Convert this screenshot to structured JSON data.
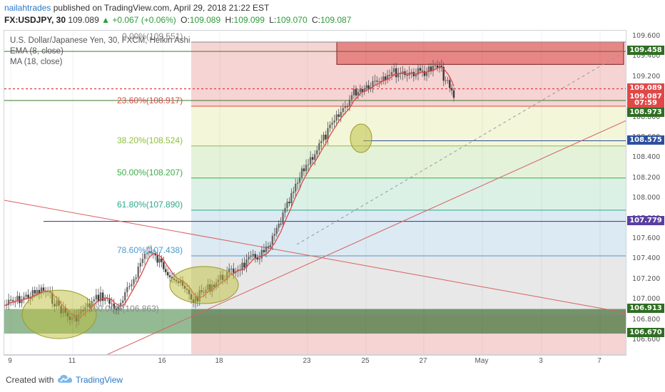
{
  "header": {
    "author": "nailahtrades",
    "published_text": "published on TradingView.com, April 29, 2018 21:22 EST",
    "symbol": "FX:USDJPY, 30",
    "last": "109.089",
    "change": "+0.067 (+0.06%)",
    "open_label": "O:",
    "open": "109.089",
    "high_label": "H:",
    "high": "109.099",
    "low_label": "L:",
    "low": "109.070",
    "close_label": "C:",
    "close": "109.087"
  },
  "legend": {
    "title": "U.S. Dollar/Japanese Yen, 30, FXCM, Heikin Ashi",
    "ema": "EMA (8, close)",
    "ma": "MA (18, close)"
  },
  "fib_levels": [
    {
      "label": "0.00%(109.551)",
      "price": 109.551,
      "color": "#888888"
    },
    {
      "label": "23.60%(108.917)",
      "price": 108.917,
      "color": "#d94a4a"
    },
    {
      "label": "38.20%(108.524)",
      "price": 108.524,
      "color": "#8fbf3a"
    },
    {
      "label": "50.00%(108.207)",
      "price": 108.207,
      "color": "#3fae4a"
    },
    {
      "label": "61.80%(107.890)",
      "price": 107.89,
      "color": "#2fa88a"
    },
    {
      "label": "78.60%(107.438)",
      "price": 107.438,
      "color": "#4a9ad0"
    },
    {
      "label": "100.00%(106.863)",
      "price": 106.863,
      "color": "#888888"
    }
  ],
  "price_axis": {
    "ticks": [
      "109.600",
      "109.400",
      "109.200",
      "109.000",
      "108.800",
      "108.600",
      "108.400",
      "108.200",
      "108.000",
      "107.800",
      "107.600",
      "107.400",
      "107.200",
      "107.000",
      "106.800",
      "106.600"
    ],
    "tags": [
      {
        "text": "109.458",
        "price": 109.458,
        "color": "#2f6e23"
      },
      {
        "text": "109.089",
        "price": 109.089,
        "color": "#e04848"
      },
      {
        "text": "109.087",
        "price": 109.0,
        "color": "#e04848"
      },
      {
        "text": "07:59",
        "price": 108.94,
        "color": "#e04848"
      },
      {
        "text": "108.973",
        "price": 108.85,
        "color": "#2f6e23"
      },
      {
        "text": "108.575",
        "price": 108.575,
        "color": "#2d4f9e"
      },
      {
        "text": "107.779",
        "price": 107.779,
        "color": "#5a3fa0"
      },
      {
        "text": "106.913",
        "price": 106.913,
        "color": "#2f6e23"
      },
      {
        "text": "106.670",
        "price": 106.67,
        "color": "#2f6e23"
      }
    ]
  },
  "time_axis": {
    "ticks": [
      "9",
      "11",
      "16",
      "18",
      "23",
      "25",
      "27",
      "May",
      "3",
      "7"
    ]
  },
  "chart_data": {
    "type": "line",
    "title": "U.S. Dollar/Japanese Yen, 30, FXCM, Heikin Ashi",
    "xlabel": "",
    "ylabel": "",
    "ylim": [
      106.55,
      109.7
    ],
    "x": [
      "9",
      "10",
      "11",
      "12",
      "13",
      "16",
      "17",
      "18",
      "19",
      "20",
      "23",
      "24",
      "25",
      "26",
      "27",
      "27"
    ],
    "series": [
      {
        "values": [
          106.95,
          107.1,
          106.8,
          107.05,
          106.9,
          107.5,
          107.25,
          107.0,
          107.2,
          107.5,
          108.3,
          109.05,
          109.25,
          109.25,
          109.3,
          109.0
        ]
      }
    ],
    "legend_position": "top-left",
    "grid": true
  },
  "footer": {
    "created_with": "Created with",
    "brand": "TradingView"
  },
  "colors": {
    "accent": "#2a78c8",
    "bull": "#2e9c3a",
    "bear": "#e04848",
    "ma": "#e04848"
  }
}
